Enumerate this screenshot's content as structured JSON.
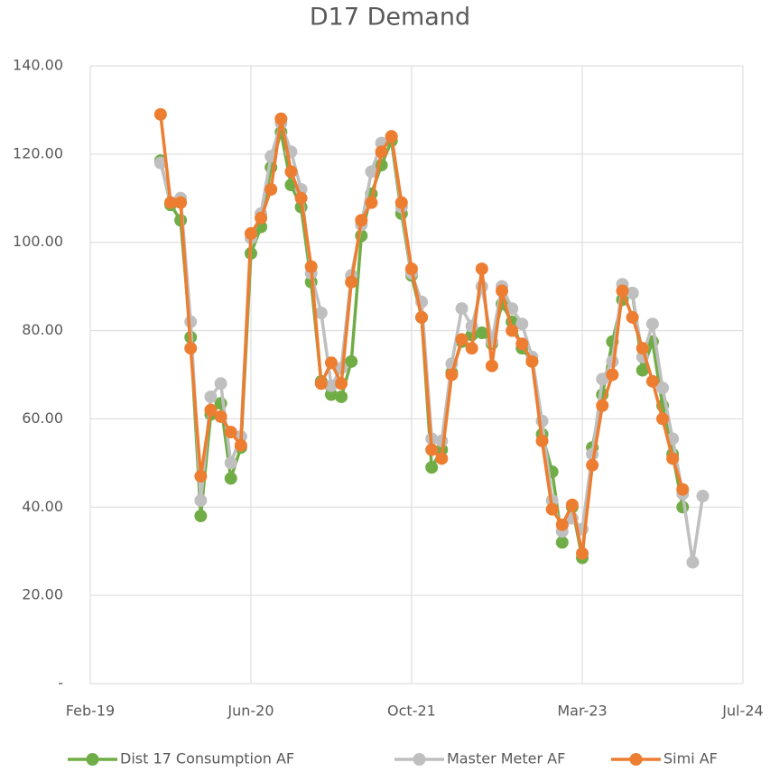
{
  "chart_data": {
    "type": "line",
    "title": "D17 Demand",
    "x": [
      "2019-09",
      "2019-10",
      "2019-11",
      "2019-12",
      "2020-01",
      "2020-02",
      "2020-03",
      "2020-04",
      "2020-05",
      "2020-06",
      "2020-07",
      "2020-08",
      "2020-09",
      "2020-10",
      "2020-11",
      "2020-12",
      "2021-01",
      "2021-02",
      "2021-03",
      "2021-04",
      "2021-05",
      "2021-06",
      "2021-07",
      "2021-08",
      "2021-09",
      "2021-10",
      "2021-11",
      "2021-12",
      "2022-01",
      "2022-02",
      "2022-03",
      "2022-04",
      "2022-05",
      "2022-06",
      "2022-07",
      "2022-08",
      "2022-09",
      "2022-10",
      "2022-11",
      "2022-12",
      "2023-01",
      "2023-02",
      "2023-03",
      "2023-04",
      "2023-05",
      "2023-06",
      "2023-07",
      "2023-08",
      "2023-09",
      "2023-10",
      "2023-11",
      "2023-12",
      "2024-01",
      "2024-02",
      "2024-03"
    ],
    "series": [
      {
        "name": "Dist 17 Consumption AF",
        "color": "#70ad47",
        "values": [
          118.5,
          108.5,
          105,
          78.5,
          38,
          61,
          63.5,
          46.5,
          53.5,
          97.5,
          103.5,
          117,
          125,
          113,
          108,
          91,
          68.5,
          65.5,
          65,
          73,
          101.5,
          111,
          117.5,
          123,
          106.5,
          92.5,
          83,
          49,
          53,
          70.5,
          77.5,
          79,
          79.5,
          77,
          86,
          82,
          76,
          73,
          56.5,
          48,
          32,
          40,
          28.5,
          53.5,
          65.5,
          77.5,
          87,
          88.5,
          71,
          77.5,
          63,
          52,
          40,
          null,
          null
        ]
      },
      {
        "name": "Master Meter AF",
        "color": "#bfbfbf",
        "values": [
          118,
          109,
          110,
          82,
          41.5,
          65,
          68,
          50,
          56,
          101,
          106.5,
          119.5,
          127,
          120.5,
          112,
          93,
          84,
          67.5,
          71.5,
          92.5,
          104,
          116,
          122.5,
          124,
          108,
          93,
          86.5,
          55.5,
          55,
          72.5,
          85,
          81,
          90,
          77.5,
          90,
          85,
          81.5,
          74,
          59.5,
          41.5,
          34.5,
          37.5,
          35,
          52,
          69,
          73,
          90.5,
          88.5,
          74,
          81.5,
          67,
          55.5,
          43,
          27.5,
          42.5
        ]
      },
      {
        "name": "Simi AF",
        "color": "#ed7d31",
        "values": [
          129,
          109,
          109,
          76,
          47,
          62,
          60.5,
          57,
          54,
          102,
          105.5,
          112,
          128,
          116,
          110,
          94.5,
          68,
          72.7,
          68,
          91,
          105,
          109,
          120.5,
          124,
          109,
          94,
          83,
          53,
          51,
          70,
          78,
          76,
          94,
          72,
          89,
          80,
          77,
          73,
          55,
          39.5,
          36,
          40.5,
          29.5,
          49.5,
          63,
          70,
          89,
          83,
          76,
          68.5,
          60,
          51,
          44,
          null,
          null
        ]
      }
    ],
    "xlim": [
      "2019-02",
      "2024-07"
    ],
    "xticks": [
      {
        "value": "2019-02",
        "label": "Feb-19"
      },
      {
        "value": "2020-06",
        "label": "Jun-20"
      },
      {
        "value": "2021-10",
        "label": "Oct-21"
      },
      {
        "value": "2023-03",
        "label": "Mar-23"
      },
      {
        "value": "2024-07",
        "label": "Jul-24"
      }
    ],
    "ylim": [
      0,
      140
    ],
    "yticks": [
      {
        "value": 0,
        "label": "-"
      },
      {
        "value": 20,
        "label": "20.00"
      },
      {
        "value": 40,
        "label": "40.00"
      },
      {
        "value": 60,
        "label": "60.00"
      },
      {
        "value": 80,
        "label": "80.00"
      },
      {
        "value": 100,
        "label": "100.00"
      },
      {
        "value": 120,
        "label": "120.00"
      },
      {
        "value": 140,
        "label": "140.00"
      }
    ],
    "grid": true,
    "legend": "bottom"
  }
}
